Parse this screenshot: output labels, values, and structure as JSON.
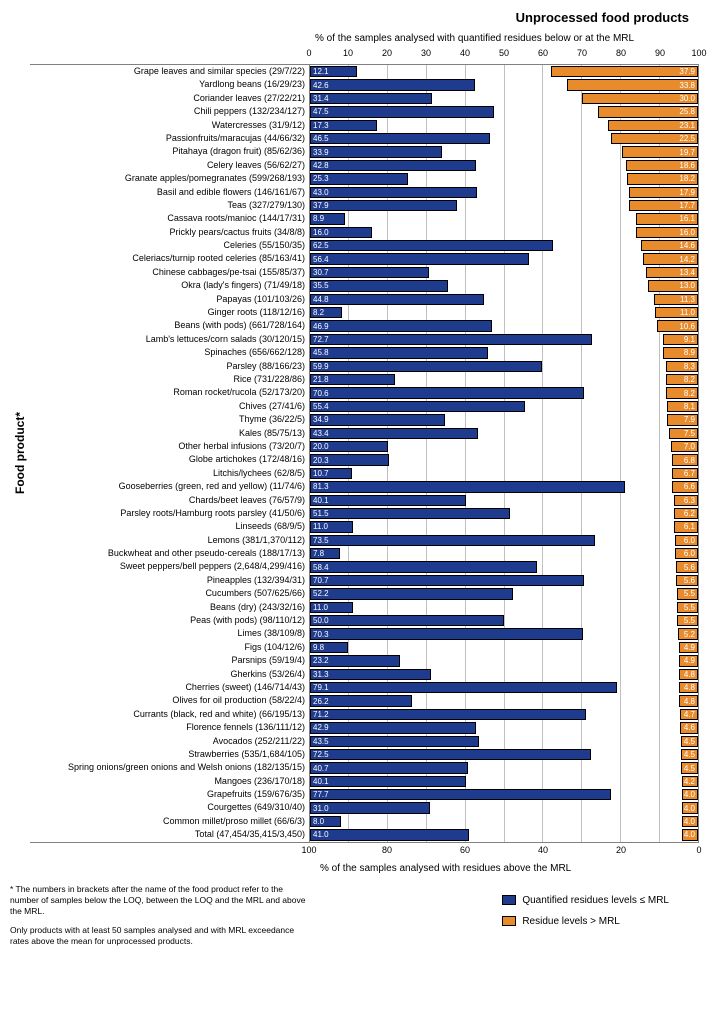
{
  "title": "Unprocessed food products",
  "subtitle_top": "% of the samples analysed with quantified residues below or at the MRL",
  "subtitle_bottom": "% of the samples analysed with residues above the MRL",
  "ylabel": "Food product*",
  "axis_top_ticks": [
    "0",
    "10",
    "20",
    "30",
    "40",
    "50",
    "60",
    "70",
    "80",
    "90",
    "100"
  ],
  "axis_bottom_ticks": [
    "100",
    "80",
    "60",
    "40",
    "20",
    "0"
  ],
  "colors": {
    "blue": "#1f3b8e",
    "orange": "#e88b2d",
    "grid": "#c0c0c0",
    "border": "#808080",
    "background": "#ffffff",
    "text": "#000000"
  },
  "legend": {
    "blue": "Quantified residues levels ≤ MRL",
    "orange": "Residue levels > MRL"
  },
  "footnote1": "* The numbers in brackets after the name of the food product refer to the number of samples below the LOQ, between the LOQ and the MRL and above the MRL.",
  "footnote2": "Only products with at least 50 samples analysed and with MRL exceedance rates above the mean for unprocessed products.",
  "rows": [
    {
      "label": "Grape leaves and similar species (29/7/22)",
      "blue": 12.1,
      "orange": 37.9
    },
    {
      "label": "Yardlong beans (16/29/23)",
      "blue": 42.6,
      "orange": 33.8
    },
    {
      "label": "Coriander leaves (27/22/21)",
      "blue": 31.4,
      "orange": 30.0
    },
    {
      "label": "Chili peppers (132/234/127)",
      "blue": 47.5,
      "orange": 25.8
    },
    {
      "label": "Watercresses (31/9/12)",
      "blue": 17.3,
      "orange": 23.1
    },
    {
      "label": "Passionfruits/maracujas (44/66/32)",
      "blue": 46.5,
      "orange": 22.5
    },
    {
      "label": "Pitahaya (dragon fruit) (85/62/36)",
      "blue": 33.9,
      "orange": 19.7
    },
    {
      "label": "Celery leaves (56/62/27)",
      "blue": 42.8,
      "orange": 18.6
    },
    {
      "label": "Granate apples/pomegranates (599/268/193)",
      "blue": 25.3,
      "orange": 18.2
    },
    {
      "label": "Basil and edible flowers (146/161/67)",
      "blue": 43.0,
      "orange": 17.9
    },
    {
      "label": "Teas (327/279/130)",
      "blue": 37.9,
      "orange": 17.7
    },
    {
      "label": "Cassava roots/manioc (144/17/31)",
      "blue": 8.9,
      "orange": 16.1
    },
    {
      "label": "Prickly pears/cactus fruits (34/8/8)",
      "blue": 16.0,
      "orange": 16.0
    },
    {
      "label": "Celeries (55/150/35)",
      "blue": 62.5,
      "orange": 14.6
    },
    {
      "label": "Celeriacs/turnip rooted celeries (85/163/41)",
      "blue": 56.4,
      "orange": 14.2
    },
    {
      "label": "Chinese cabbages/pe-tsai (155/85/37)",
      "blue": 30.7,
      "orange": 13.4
    },
    {
      "label": "Okra (lady's fingers) (71/49/18)",
      "blue": 35.5,
      "orange": 13.0
    },
    {
      "label": "Papayas (101/103/26)",
      "blue": 44.8,
      "orange": 11.3
    },
    {
      "label": "Ginger roots (118/12/16)",
      "blue": 8.2,
      "orange": 11.0
    },
    {
      "label": "Beans (with pods) (661/728/164)",
      "blue": 46.9,
      "orange": 10.6
    },
    {
      "label": "Lamb's lettuces/corn salads (30/120/15)",
      "blue": 72.7,
      "orange": 9.1
    },
    {
      "label": "Spinaches (656/662/128)",
      "blue": 45.8,
      "orange": 8.9
    },
    {
      "label": "Parsley (88/166/23)",
      "blue": 59.9,
      "orange": 8.3
    },
    {
      "label": "Rice (731/228/86)",
      "blue": 21.8,
      "orange": 8.2
    },
    {
      "label": "Roman rocket/rucola (52/173/20)",
      "blue": 70.6,
      "orange": 8.2
    },
    {
      "label": "Chives (27/41/6)",
      "blue": 55.4,
      "orange": 8.1
    },
    {
      "label": "Thyme (36/22/5)",
      "blue": 34.9,
      "orange": 7.9
    },
    {
      "label": "Kales (85/75/13)",
      "blue": 43.4,
      "orange": 7.5
    },
    {
      "label": "Other herbal infusions (73/20/7)",
      "blue": 20.0,
      "orange": 7.0
    },
    {
      "label": "Globe artichokes (172/48/16)",
      "blue": 20.3,
      "orange": 6.8
    },
    {
      "label": "Litchis/lychees (62/8/5)",
      "blue": 10.7,
      "orange": 6.7
    },
    {
      "label": "Gooseberries (green, red and yellow) (11/74/6)",
      "blue": 81.3,
      "orange": 6.6
    },
    {
      "label": "Chards/beet leaves (76/57/9)",
      "blue": 40.1,
      "orange": 6.3
    },
    {
      "label": "Parsley roots/Hamburg roots parsley (41/50/6)",
      "blue": 51.5,
      "orange": 6.2
    },
    {
      "label": "Linseeds (68/9/5)",
      "blue": 11.0,
      "orange": 6.1
    },
    {
      "label": "Lemons (381/1,370/112)",
      "blue": 73.5,
      "orange": 6.0
    },
    {
      "label": "Buckwheat and other pseudo-cereals (188/17/13)",
      "blue": 7.8,
      "orange": 6.0
    },
    {
      "label": "Sweet peppers/bell peppers (2,648/4,299/416)",
      "blue": 58.4,
      "orange": 5.6
    },
    {
      "label": "Pineapples (132/394/31)",
      "blue": 70.7,
      "orange": 5.6
    },
    {
      "label": "Cucumbers (507/625/66)",
      "blue": 52.2,
      "orange": 5.5
    },
    {
      "label": "Beans (dry) (243/32/16)",
      "blue": 11.0,
      "orange": 5.5
    },
    {
      "label": "Peas (with pods) (98/110/12)",
      "blue": 50.0,
      "orange": 5.5
    },
    {
      "label": "Limes (38/109/8)",
      "blue": 70.3,
      "orange": 5.2
    },
    {
      "label": "Figs (104/12/6)",
      "blue": 9.8,
      "orange": 4.9
    },
    {
      "label": "Parsnips (59/19/4)",
      "blue": 23.2,
      "orange": 4.9
    },
    {
      "label": "Gherkins (53/26/4)",
      "blue": 31.3,
      "orange": 4.8
    },
    {
      "label": "Cherries (sweet) (146/714/43)",
      "blue": 79.1,
      "orange": 4.8
    },
    {
      "label": "Olives for oil production (58/22/4)",
      "blue": 26.2,
      "orange": 4.8
    },
    {
      "label": "Currants (black, red and white) (66/195/13)",
      "blue": 71.2,
      "orange": 4.7
    },
    {
      "label": "Florence fennels (136/111/12)",
      "blue": 42.9,
      "orange": 4.6
    },
    {
      "label": "Avocados (252/211/22)",
      "blue": 43.5,
      "orange": 4.5
    },
    {
      "label": "Strawberries (535/1,684/105)",
      "blue": 72.5,
      "orange": 4.5
    },
    {
      "label": "Spring onions/green onions and Welsh onions (182/135/15)",
      "blue": 40.7,
      "orange": 4.5
    },
    {
      "label": "Mangoes (236/170/18)",
      "blue": 40.1,
      "orange": 4.2
    },
    {
      "label": "Grapefruits (159/676/35)",
      "blue": 77.7,
      "orange": 4.0
    },
    {
      "label": "Courgettes (649/310/40)",
      "blue": 31.0,
      "orange": 4.0
    },
    {
      "label": "Common millet/proso millet (66/6/3)",
      "blue": 8.0,
      "orange": 4.0
    },
    {
      "label": "Total (47,454/35,415/3,450)",
      "blue": 41.0,
      "orange": 4.0
    }
  ]
}
